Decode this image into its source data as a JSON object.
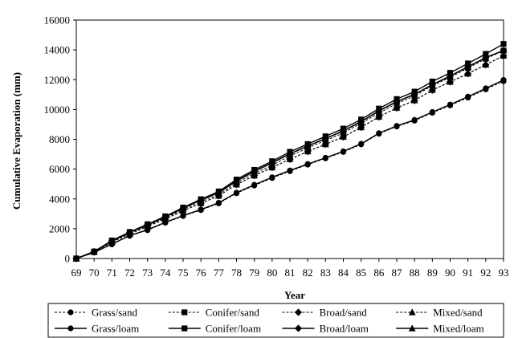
{
  "chart_data": {
    "type": "line",
    "title": "",
    "xlabel": "Year",
    "ylabel": "Cumulative Evaporation (mm)",
    "ylim": [
      0,
      16000
    ],
    "yticks": [
      "0",
      "2000",
      "4000",
      "6000",
      "8000",
      "10000",
      "12000",
      "14000",
      "16000"
    ],
    "x": [
      "69",
      "70",
      "71",
      "72",
      "73",
      "74",
      "75",
      "76",
      "77",
      "78",
      "79",
      "80",
      "81",
      "82",
      "83",
      "84",
      "85",
      "86",
      "87",
      "88",
      "89",
      "90",
      "91",
      "92",
      "93"
    ],
    "grid": false,
    "legend_position": "bottom",
    "series": [
      {
        "name": "Grass/sand",
        "marker": "circle",
        "dash": "dashed",
        "values": [
          0,
          400,
          950,
          1520,
          1900,
          2400,
          2850,
          3250,
          3700,
          4380,
          4900,
          5400,
          5860,
          6300,
          6720,
          7150,
          7660,
          8370,
          8860,
          9250,
          9780,
          10270,
          10800,
          11350,
          11900
        ]
      },
      {
        "name": "Conifer/sand",
        "marker": "square",
        "dash": "dashed",
        "values": [
          0,
          450,
          1150,
          1720,
          2220,
          2730,
          3300,
          3820,
          4300,
          5090,
          5700,
          6260,
          6880,
          7420,
          7920,
          8420,
          9080,
          9760,
          10400,
          10900,
          11600,
          12150,
          12780,
          13400,
          13950
        ]
      },
      {
        "name": "Broad/sand",
        "marker": "diamond",
        "dash": "dashed",
        "values": [
          0,
          440,
          1100,
          1650,
          2150,
          2650,
          3200,
          3700,
          4200,
          4960,
          5560,
          6100,
          6660,
          7180,
          7660,
          8160,
          8800,
          9500,
          10100,
          10600,
          11300,
          11850,
          12400,
          13000,
          13600
        ]
      },
      {
        "name": "Mixed/sand",
        "marker": "triangle",
        "dash": "dashed",
        "values": [
          0,
          440,
          1100,
          1660,
          2160,
          2660,
          3210,
          3710,
          4210,
          4970,
          5570,
          6110,
          6670,
          7190,
          7670,
          8170,
          8810,
          9510,
          10110,
          10610,
          11310,
          11860,
          12410,
          13010,
          13610
        ]
      },
      {
        "name": "Grass/loam",
        "marker": "circle",
        "dash": "solid",
        "values": [
          0,
          410,
          970,
          1540,
          1930,
          2430,
          2880,
          3290,
          3740,
          4420,
          4950,
          5450,
          5910,
          6340,
          6760,
          7190,
          7700,
          8410,
          8900,
          9300,
          9830,
          10330,
          10860,
          11420,
          11980
        ]
      },
      {
        "name": "Conifer/loam",
        "marker": "square",
        "dash": "solid",
        "values": [
          0,
          470,
          1210,
          1780,
          2300,
          2830,
          3420,
          3980,
          4500,
          5300,
          5950,
          6530,
          7160,
          7680,
          8200,
          8720,
          9330,
          10060,
          10700,
          11200,
          11880,
          12460,
          13090,
          13730,
          14400
        ]
      },
      {
        "name": "Broad/loam",
        "marker": "diamond",
        "dash": "solid",
        "values": [
          0,
          460,
          1180,
          1750,
          2260,
          2790,
          3380,
          3920,
          4420,
          5200,
          5840,
          6420,
          7020,
          7540,
          8040,
          8560,
          9180,
          9900,
          10520,
          11010,
          11660,
          12240,
          12860,
          13480,
          13950
        ]
      },
      {
        "name": "Mixed/loam",
        "marker": "triangle",
        "dash": "solid",
        "values": [
          0,
          460,
          1180,
          1750,
          2270,
          2800,
          3390,
          3930,
          4430,
          5210,
          5850,
          6430,
          7030,
          7550,
          8050,
          8570,
          9190,
          9910,
          10530,
          11020,
          11670,
          12250,
          12870,
          13490,
          13960
        ]
      }
    ]
  }
}
